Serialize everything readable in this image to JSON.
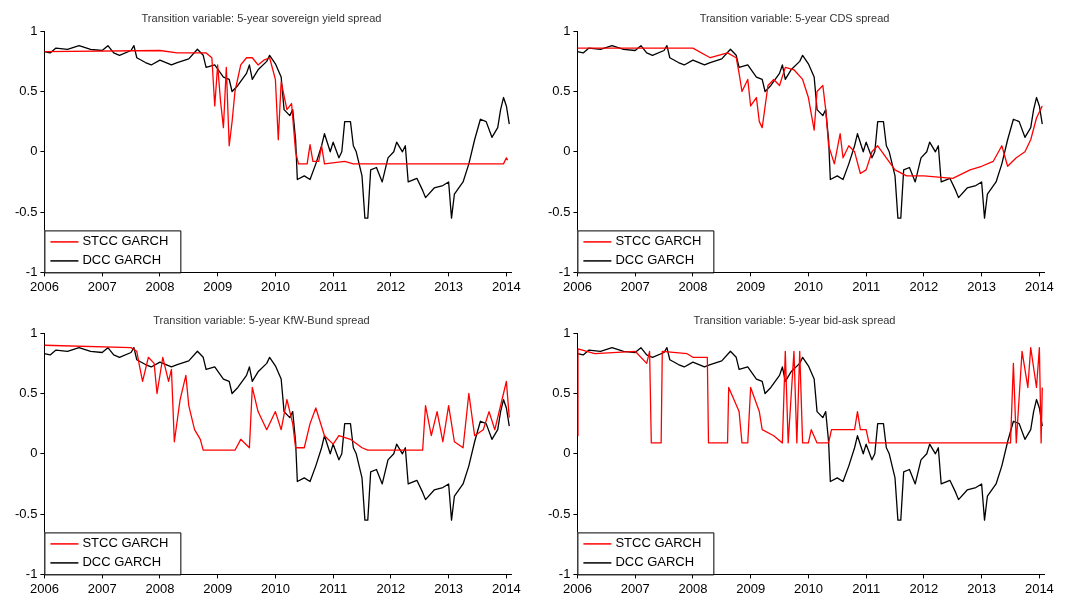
{
  "chart_data": [
    {
      "type": "line",
      "title": "Transition variable: 5-year sovereign yield spread",
      "xlim": [
        2006,
        2014.08
      ],
      "xticks": [
        2006,
        2007,
        2008,
        2009,
        2010,
        2011,
        2012,
        2013,
        2014
      ],
      "ylim": [
        -1,
        1
      ],
      "yticks": [
        -1,
        -0.5,
        0,
        0.5,
        1
      ],
      "grid": false,
      "legend": "bottom left",
      "series": [
        {
          "name": "STCC GARCH",
          "color": "#ff0000",
          "x": [
            2006,
            2008.0,
            2008.3,
            2008.8,
            2008.9,
            2008.95,
            2009.0,
            2009.05,
            2009.1,
            2009.15,
            2009.2,
            2009.25,
            2009.3,
            2009.4,
            2009.5,
            2009.6,
            2009.7,
            2009.8,
            2009.9,
            2010.0,
            2010.05,
            2010.1,
            2010.2,
            2010.28,
            2010.35,
            2010.4,
            2010.55,
            2010.6,
            2010.65,
            2010.75,
            2010.8,
            2010.85,
            2011.2,
            2011.35,
            2013.95,
            2014.0,
            2014.02
          ],
          "values": [
            0.83,
            0.84,
            0.82,
            0.82,
            0.78,
            0.38,
            0.72,
            0.42,
            0.2,
            0.7,
            0.05,
            0.25,
            0.5,
            0.72,
            0.78,
            0.78,
            0.72,
            0.76,
            0.78,
            0.6,
            0.1,
            0.58,
            0.35,
            0.4,
            0,
            -0.1,
            -0.1,
            0.06,
            -0.08,
            -0.08,
            0.05,
            -0.1,
            -0.08,
            -0.1,
            -0.1,
            -0.05,
            -0.07
          ]
        },
        {
          "name": "DCC GARCH",
          "color": "#000000",
          "x": [
            2006.0,
            2006.1,
            2006.2,
            2006.4,
            2006.6,
            2006.8,
            2007.0,
            2007.1,
            2007.2,
            2007.3,
            2007.5,
            2007.55,
            2007.6,
            2007.75,
            2007.85,
            2008.0,
            2008.2,
            2008.3,
            2008.5,
            2008.65,
            2008.75,
            2008.8,
            2008.95,
            2009.1,
            2009.2,
            2009.25,
            2009.35,
            2009.5,
            2009.55,
            2009.6,
            2009.7,
            2009.85,
            2009.9,
            2010.0,
            2010.1,
            2010.15,
            2010.25,
            2010.3,
            2010.35,
            2010.38,
            2010.5,
            2010.6,
            2010.7,
            2010.8,
            2010.85,
            2010.95,
            2011.0,
            2011.1,
            2011.15,
            2011.2,
            2011.3,
            2011.35,
            2011.4,
            2011.5,
            2011.55,
            2011.6,
            2011.65,
            2011.75,
            2011.85,
            2011.95,
            2012.05,
            2012.1,
            2012.2,
            2012.25,
            2012.3,
            2012.45,
            2012.55,
            2012.6,
            2012.75,
            2012.9,
            2013.0,
            2013.05,
            2013.1,
            2013.25,
            2013.35,
            2013.45,
            2013.55,
            2013.65,
            2013.75,
            2013.85,
            2013.9,
            2013.95,
            2014.0,
            2014.05
          ],
          "values": [
            0.83,
            0.82,
            0.86,
            0.85,
            0.88,
            0.85,
            0.84,
            0.88,
            0.82,
            0.8,
            0.84,
            0.88,
            0.78,
            0.74,
            0.72,
            0.76,
            0.72,
            0.74,
            0.77,
            0.85,
            0.8,
            0.7,
            0.72,
            0.62,
            0.6,
            0.5,
            0.55,
            0.65,
            0.72,
            0.6,
            0.68,
            0.75,
            0.8,
            0.73,
            0.62,
            0.35,
            0.3,
            0.35,
            0.1,
            -0.23,
            -0.2,
            -0.23,
            -0.1,
            0.05,
            0.15,
            0,
            0.08,
            -0.05,
            0,
            0.25,
            0.25,
            0.05,
            0,
            -0.2,
            -0.55,
            -0.55,
            -0.15,
            -0.13,
            -0.25,
            -0.05,
            0,
            0.08,
            0,
            0.05,
            -0.25,
            -0.22,
            -0.32,
            -0.38,
            -0.3,
            -0.28,
            -0.25,
            -0.55,
            -0.35,
            -0.25,
            -0.1,
            0.1,
            0.27,
            0.25,
            0.12,
            0.2,
            0.35,
            0.45,
            0.38,
            0.23
          ]
        }
      ]
    },
    {
      "type": "line",
      "title": "Transition variable: 5-year CDS spread",
      "xlim": [
        2006,
        2014.08
      ],
      "xticks": [
        2006,
        2007,
        2008,
        2009,
        2010,
        2011,
        2012,
        2013,
        2014
      ],
      "ylim": [
        -1,
        1
      ],
      "yticks": [
        -1,
        -0.5,
        0,
        0.5,
        1
      ],
      "grid": false,
      "legend": "bottom left",
      "series": [
        {
          "name": "STCC GARCH",
          "color": "#ff0000",
          "x": [
            2006,
            2008.0,
            2008.3,
            2008.6,
            2008.75,
            2008.8,
            2008.85,
            2008.95,
            2009.0,
            2009.1,
            2009.15,
            2009.2,
            2009.3,
            2009.4,
            2009.5,
            2009.6,
            2009.75,
            2009.9,
            2010.0,
            2010.1,
            2010.15,
            2010.25,
            2010.3,
            2010.35,
            2010.45,
            2010.55,
            2010.6,
            2010.7,
            2010.8,
            2010.9,
            2011.0,
            2011.1,
            2011.2,
            2011.35,
            2011.5,
            2011.7,
            2012.0,
            2012.5,
            2012.8,
            2013.0,
            2013.2,
            2013.35,
            2013.45,
            2013.6,
            2013.75,
            2013.85,
            2013.95,
            2014.05
          ],
          "values": [
            0.86,
            0.86,
            0.78,
            0.82,
            0.78,
            0.65,
            0.5,
            0.6,
            0.38,
            0.45,
            0.25,
            0.2,
            0.55,
            0.6,
            0.55,
            0.7,
            0.68,
            0.6,
            0.45,
            0.18,
            0.5,
            0.55,
            0.35,
            0.05,
            -0.1,
            0.15,
            -0.05,
            0.05,
            0,
            -0.18,
            -0.15,
            0,
            0.05,
            -0.05,
            -0.15,
            -0.2,
            -0.2,
            -0.22,
            -0.15,
            -0.12,
            -0.08,
            0.05,
            -0.12,
            -0.05,
            0,
            0.1,
            0.28,
            0.38
          ]
        },
        {
          "name": "DCC GARCH",
          "color": "#000000",
          "x": [
            2006.0,
            2006.1,
            2006.2,
            2006.4,
            2006.6,
            2006.8,
            2007.0,
            2007.1,
            2007.2,
            2007.3,
            2007.5,
            2007.55,
            2007.6,
            2007.75,
            2007.85,
            2008.0,
            2008.2,
            2008.3,
            2008.5,
            2008.65,
            2008.75,
            2008.8,
            2008.95,
            2009.1,
            2009.2,
            2009.25,
            2009.35,
            2009.5,
            2009.55,
            2009.6,
            2009.7,
            2009.85,
            2009.9,
            2010.0,
            2010.1,
            2010.15,
            2010.25,
            2010.3,
            2010.35,
            2010.38,
            2010.5,
            2010.6,
            2010.7,
            2010.8,
            2010.85,
            2010.95,
            2011.0,
            2011.1,
            2011.15,
            2011.2,
            2011.3,
            2011.35,
            2011.4,
            2011.5,
            2011.55,
            2011.6,
            2011.65,
            2011.75,
            2011.85,
            2011.95,
            2012.05,
            2012.1,
            2012.2,
            2012.25,
            2012.3,
            2012.45,
            2012.55,
            2012.6,
            2012.75,
            2012.9,
            2013.0,
            2013.05,
            2013.1,
            2013.25,
            2013.35,
            2013.45,
            2013.55,
            2013.65,
            2013.75,
            2013.85,
            2013.9,
            2013.95,
            2014.0,
            2014.05
          ],
          "values": [
            0.83,
            0.82,
            0.86,
            0.85,
            0.88,
            0.85,
            0.84,
            0.88,
            0.82,
            0.8,
            0.84,
            0.88,
            0.78,
            0.74,
            0.72,
            0.76,
            0.72,
            0.74,
            0.77,
            0.85,
            0.8,
            0.7,
            0.72,
            0.62,
            0.6,
            0.5,
            0.55,
            0.65,
            0.72,
            0.6,
            0.68,
            0.75,
            0.8,
            0.73,
            0.62,
            0.35,
            0.3,
            0.35,
            0.1,
            -0.23,
            -0.2,
            -0.23,
            -0.1,
            0.05,
            0.15,
            0,
            0.08,
            -0.05,
            0,
            0.25,
            0.25,
            0.05,
            0,
            -0.2,
            -0.55,
            -0.55,
            -0.15,
            -0.13,
            -0.25,
            -0.05,
            0,
            0.08,
            0,
            0.05,
            -0.25,
            -0.22,
            -0.32,
            -0.38,
            -0.3,
            -0.28,
            -0.25,
            -0.55,
            -0.35,
            -0.25,
            -0.1,
            0.1,
            0.27,
            0.25,
            0.12,
            0.2,
            0.35,
            0.45,
            0.38,
            0.23
          ]
        }
      ]
    },
    {
      "type": "line",
      "title": "Transition variable: 5-year KfW-Bund spread",
      "xlim": [
        2006,
        2014.08
      ],
      "xticks": [
        2006,
        2007,
        2008,
        2009,
        2010,
        2011,
        2012,
        2013,
        2014
      ],
      "ylim": [
        -1,
        1
      ],
      "yticks": [
        -1,
        -0.5,
        0,
        0.5,
        1
      ],
      "grid": false,
      "legend": "bottom left",
      "series": [
        {
          "name": "STCC GARCH",
          "color": "#ff0000",
          "x": [
            2006,
            2007.5,
            2007.6,
            2007.65,
            2007.7,
            2007.8,
            2007.9,
            2007.95,
            2008.05,
            2008.15,
            2008.2,
            2008.25,
            2008.35,
            2008.45,
            2008.5,
            2008.6,
            2008.7,
            2008.75,
            2009.3,
            2009.4,
            2009.55,
            2009.6,
            2009.7,
            2009.85,
            2010.0,
            2010.1,
            2010.2,
            2010.3,
            2010.35,
            2010.5,
            2010.6,
            2010.7,
            2010.85,
            2011.0,
            2011.1,
            2011.3,
            2011.5,
            2011.6,
            2012.55,
            2012.6,
            2012.7,
            2012.8,
            2012.9,
            2013.0,
            2013.1,
            2013.25,
            2013.35,
            2013.45,
            2013.6,
            2013.7,
            2013.8,
            2013.95,
            2014.0,
            2014.05
          ],
          "values": [
            0.9,
            0.88,
            0.85,
            0.72,
            0.6,
            0.8,
            0.75,
            0.5,
            0.8,
            0.6,
            0.7,
            0.1,
            0.45,
            0.65,
            0.4,
            0.2,
            0.12,
            0.03,
            0.03,
            0.12,
            0.05,
            0.55,
            0.35,
            0.2,
            0.35,
            0.2,
            0.45,
            0.25,
            0.05,
            0.05,
            0.25,
            0.38,
            0.15,
            0.08,
            0.15,
            0.12,
            0.05,
            0.03,
            0.03,
            0.4,
            0.15,
            0.35,
            0.1,
            0.4,
            0.1,
            0.05,
            0.5,
            0.15,
            0.2,
            0.35,
            0.2,
            0.5,
            0.6,
            0.3
          ]
        },
        {
          "name": "DCC GARCH",
          "color": "#000000",
          "x": [
            2006.0,
            2006.1,
            2006.2,
            2006.4,
            2006.6,
            2006.8,
            2007.0,
            2007.1,
            2007.2,
            2007.3,
            2007.5,
            2007.55,
            2007.6,
            2007.75,
            2007.85,
            2008.0,
            2008.2,
            2008.3,
            2008.5,
            2008.65,
            2008.75,
            2008.8,
            2008.95,
            2009.1,
            2009.2,
            2009.25,
            2009.35,
            2009.5,
            2009.55,
            2009.6,
            2009.7,
            2009.85,
            2009.9,
            2010.0,
            2010.1,
            2010.15,
            2010.25,
            2010.3,
            2010.35,
            2010.38,
            2010.5,
            2010.6,
            2010.7,
            2010.8,
            2010.85,
            2010.95,
            2011.0,
            2011.1,
            2011.15,
            2011.2,
            2011.3,
            2011.35,
            2011.4,
            2011.5,
            2011.55,
            2011.6,
            2011.65,
            2011.75,
            2011.85,
            2011.95,
            2012.05,
            2012.1,
            2012.2,
            2012.25,
            2012.3,
            2012.45,
            2012.55,
            2012.6,
            2012.75,
            2012.9,
            2013.0,
            2013.05,
            2013.1,
            2013.25,
            2013.35,
            2013.45,
            2013.55,
            2013.65,
            2013.75,
            2013.85,
            2013.9,
            2013.95,
            2014.0,
            2014.05
          ],
          "values": [
            0.83,
            0.82,
            0.86,
            0.85,
            0.88,
            0.85,
            0.84,
            0.88,
            0.82,
            0.8,
            0.84,
            0.88,
            0.78,
            0.74,
            0.72,
            0.76,
            0.72,
            0.74,
            0.77,
            0.85,
            0.8,
            0.7,
            0.72,
            0.62,
            0.6,
            0.5,
            0.55,
            0.65,
            0.72,
            0.6,
            0.68,
            0.75,
            0.8,
            0.73,
            0.62,
            0.35,
            0.3,
            0.35,
            0.1,
            -0.23,
            -0.2,
            -0.23,
            -0.1,
            0.05,
            0.15,
            0,
            0.08,
            -0.05,
            0,
            0.25,
            0.25,
            0.05,
            0,
            -0.2,
            -0.55,
            -0.55,
            -0.15,
            -0.13,
            -0.25,
            -0.05,
            0,
            0.08,
            0,
            0.05,
            -0.25,
            -0.22,
            -0.32,
            -0.38,
            -0.3,
            -0.28,
            -0.25,
            -0.55,
            -0.35,
            -0.25,
            -0.1,
            0.1,
            0.27,
            0.25,
            0.12,
            0.2,
            0.35,
            0.45,
            0.38,
            0.23
          ]
        }
      ]
    },
    {
      "type": "line",
      "title": "Transition variable: 5-year bid-ask spread",
      "xlim": [
        2006,
        2014.08
      ],
      "xticks": [
        2006,
        2007,
        2008,
        2009,
        2010,
        2011,
        2012,
        2013,
        2014
      ],
      "ylim": [
        -1,
        1
      ],
      "yticks": [
        -1,
        -0.5,
        0,
        0.5,
        1
      ],
      "grid": false,
      "legend": "bottom left",
      "series": [
        {
          "name": "STCC GARCH",
          "color": "#ff0000",
          "x": [
            2006,
            2006.01,
            2006.3,
            2007.0,
            2007.2,
            2007.25,
            2007.28,
            2007.45,
            2007.47,
            2007.9,
            2008.0,
            2008.25,
            2008.27,
            2008.6,
            2008.62,
            2008.8,
            2008.85,
            2008.95,
            2009.0,
            2009.15,
            2009.2,
            2009.4,
            2009.55,
            2009.6,
            2009.65,
            2009.75,
            2009.8,
            2009.85,
            2009.9,
            2010.0,
            2010.05,
            2010.15,
            2010.35,
            2010.4,
            2010.8,
            2010.85,
            2010.9,
            2011.0,
            2011.05,
            2013.5,
            2013.55,
            2013.6,
            2013.7,
            2013.8,
            2013.85,
            2013.95,
            2014.0,
            2014.03,
            2014.05
          ],
          "values": [
            0.15,
            0.87,
            0.83,
            0.85,
            0.75,
            0.85,
            0.09,
            0.09,
            0.85,
            0.83,
            0.8,
            0.8,
            0.09,
            0.09,
            0.55,
            0.35,
            0.09,
            0.09,
            0.55,
            0.35,
            0.2,
            0.15,
            0.09,
            0.85,
            0.09,
            0.85,
            0.09,
            0.85,
            0.09,
            0.09,
            0.2,
            0.09,
            0.09,
            0.2,
            0.2,
            0.35,
            0.2,
            0.2,
            0.09,
            0.09,
            0.75,
            0.09,
            0.85,
            0.55,
            0.88,
            0.55,
            0.88,
            0.09,
            0.55
          ]
        },
        {
          "name": "DCC GARCH",
          "color": "#000000",
          "x": [
            2006.0,
            2006.1,
            2006.2,
            2006.4,
            2006.6,
            2006.8,
            2007.0,
            2007.1,
            2007.2,
            2007.3,
            2007.5,
            2007.55,
            2007.6,
            2007.75,
            2007.85,
            2008.0,
            2008.2,
            2008.3,
            2008.5,
            2008.65,
            2008.75,
            2008.8,
            2008.95,
            2009.1,
            2009.2,
            2009.25,
            2009.35,
            2009.5,
            2009.55,
            2009.6,
            2009.7,
            2009.85,
            2009.9,
            2010.0,
            2010.1,
            2010.15,
            2010.25,
            2010.3,
            2010.35,
            2010.38,
            2010.5,
            2010.6,
            2010.7,
            2010.8,
            2010.85,
            2010.95,
            2011.0,
            2011.1,
            2011.15,
            2011.2,
            2011.3,
            2011.35,
            2011.4,
            2011.5,
            2011.55,
            2011.6,
            2011.65,
            2011.75,
            2011.85,
            2011.95,
            2012.05,
            2012.1,
            2012.2,
            2012.25,
            2012.3,
            2012.45,
            2012.55,
            2012.6,
            2012.75,
            2012.9,
            2013.0,
            2013.05,
            2013.1,
            2013.25,
            2013.35,
            2013.45,
            2013.55,
            2013.65,
            2013.75,
            2013.85,
            2013.9,
            2013.95,
            2014.0,
            2014.05
          ],
          "values": [
            0.83,
            0.82,
            0.86,
            0.85,
            0.88,
            0.85,
            0.84,
            0.88,
            0.82,
            0.8,
            0.84,
            0.88,
            0.78,
            0.74,
            0.72,
            0.76,
            0.72,
            0.74,
            0.77,
            0.85,
            0.8,
            0.7,
            0.72,
            0.62,
            0.6,
            0.5,
            0.55,
            0.65,
            0.72,
            0.6,
            0.68,
            0.75,
            0.8,
            0.73,
            0.62,
            0.35,
            0.3,
            0.35,
            0.1,
            -0.23,
            -0.2,
            -0.23,
            -0.1,
            0.05,
            0.15,
            0,
            0.08,
            -0.05,
            0,
            0.25,
            0.25,
            0.05,
            0,
            -0.2,
            -0.55,
            -0.55,
            -0.15,
            -0.13,
            -0.25,
            -0.05,
            0,
            0.08,
            0,
            0.05,
            -0.25,
            -0.22,
            -0.32,
            -0.38,
            -0.3,
            -0.28,
            -0.25,
            -0.55,
            -0.35,
            -0.25,
            -0.1,
            0.1,
            0.27,
            0.25,
            0.12,
            0.2,
            0.35,
            0.45,
            0.38,
            0.23
          ]
        }
      ]
    }
  ]
}
